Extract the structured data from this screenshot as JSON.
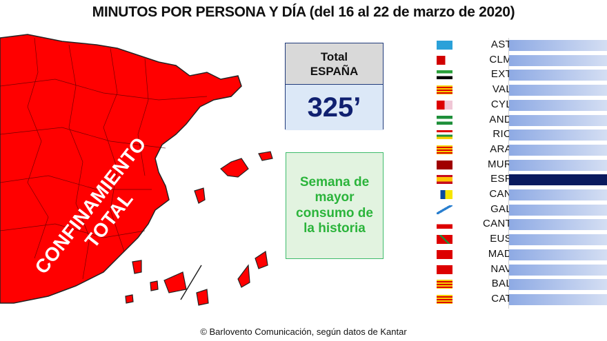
{
  "title": "MINUTOS POR PERSONA Y DÍA (del 16 al 22 de marzo de 2020)",
  "map": {
    "label_line1": "CONFINAMIENTO",
    "label_line2": "TOTAL",
    "fill_color": "#ff0000"
  },
  "total_box": {
    "header_line1": "Total",
    "header_line2": "ESPAÑA",
    "value": "325’"
  },
  "note_box": {
    "text": "Semana de mayor consumo de la historia"
  },
  "footer": "© Barlovento Comunicación, según datos de Kantar",
  "chart_data": {
    "type": "bar",
    "orientation": "horizontal",
    "title": "MINUTOS POR PERSONA Y DÍA (del 16 al 22 de marzo de 2020)",
    "categories": [
      "AST",
      "CLM",
      "EXT",
      "VAL",
      "CYL",
      "AND",
      "RIO",
      "ARA",
      "MUR",
      "ESP",
      "CAN",
      "GAL",
      "CANT",
      "EUS",
      "MAD",
      "NAV",
      "BAL",
      "CAT"
    ],
    "highlight": "ESP",
    "highlight_value": 325,
    "values_visible": false,
    "note": "Bars extend past right edge; individual values not shown in crop",
    "colors": {
      "bar": "#8eaae4",
      "highlight": "#0a1a5e"
    }
  }
}
